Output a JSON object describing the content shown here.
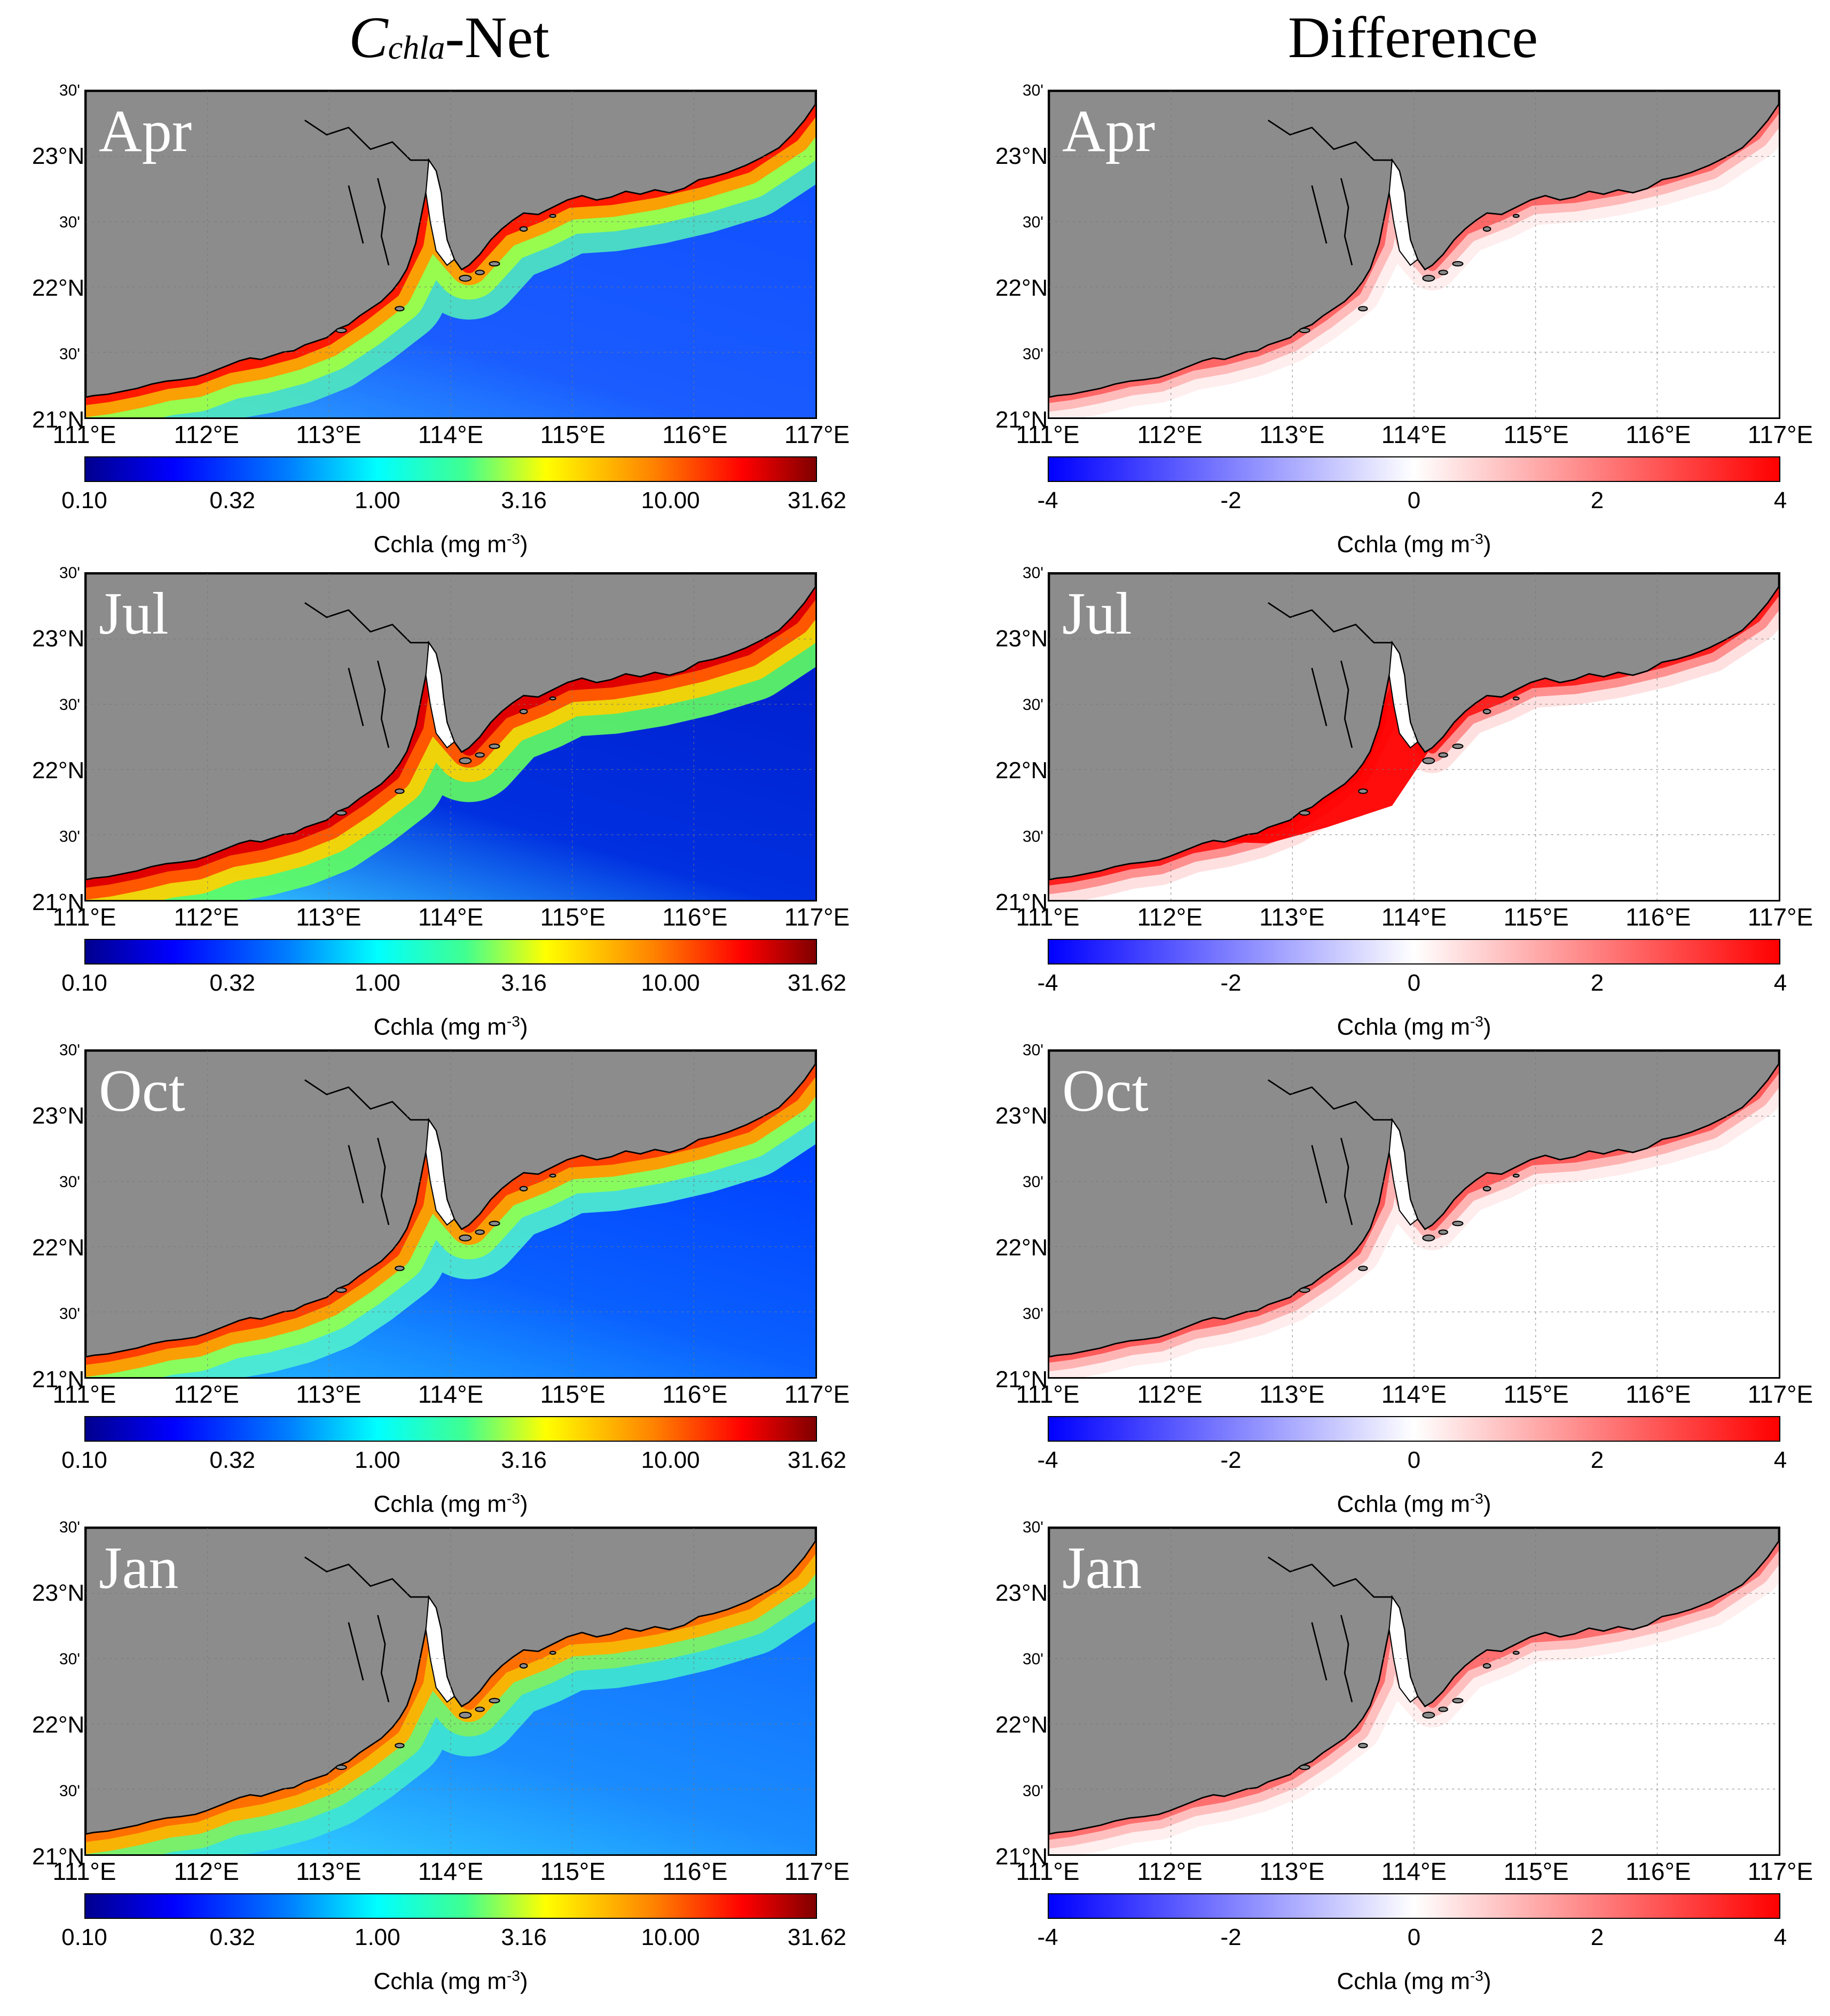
{
  "figure": {
    "left_title": {
      "main": "C",
      "sub": "chla",
      "suffix": "-Net"
    },
    "right_title": "Difference",
    "colorbar_title": {
      "base": "Cchla (mg m",
      "exp": "-3",
      "close": ")"
    },
    "lat_labels": [
      "30'",
      "23°N",
      "30'",
      "22°N",
      "30'",
      "21°N"
    ],
    "lon_labels": [
      "111°E",
      "112°E",
      "113°E",
      "114°E",
      "115°E",
      "116°E",
      "117°E"
    ],
    "seq_colorbar_ticks": [
      "0.10",
      "0.32",
      "1.00",
      "3.16",
      "10.00",
      "31.62"
    ],
    "div_colorbar_ticks": [
      "-4",
      "-2",
      "0",
      "2",
      "4"
    ],
    "seq_colorbar_range_log10": [
      -1,
      1.5
    ],
    "div_colorbar_range": [
      -4,
      4
    ],
    "map_extent": {
      "lon": [
        111,
        117
      ],
      "lat": [
        21,
        23.5
      ]
    },
    "months": [
      "Apr",
      "Jul",
      "Oct",
      "Jan"
    ]
  },
  "colors": {
    "land": "#8c8c8c",
    "coast": "#000000",
    "ocean_low_seq": "#1a5cff",
    "ocean_mid_seq": "#00c8ff",
    "shelf_seq": "#60ff80",
    "coastal_high_seq": "#ff9a00",
    "estuary_max_seq": "#ff1a00",
    "div_zero": "#ffffff",
    "div_positive": "#ff0000",
    "div_negative": "#0000ff"
  }
}
